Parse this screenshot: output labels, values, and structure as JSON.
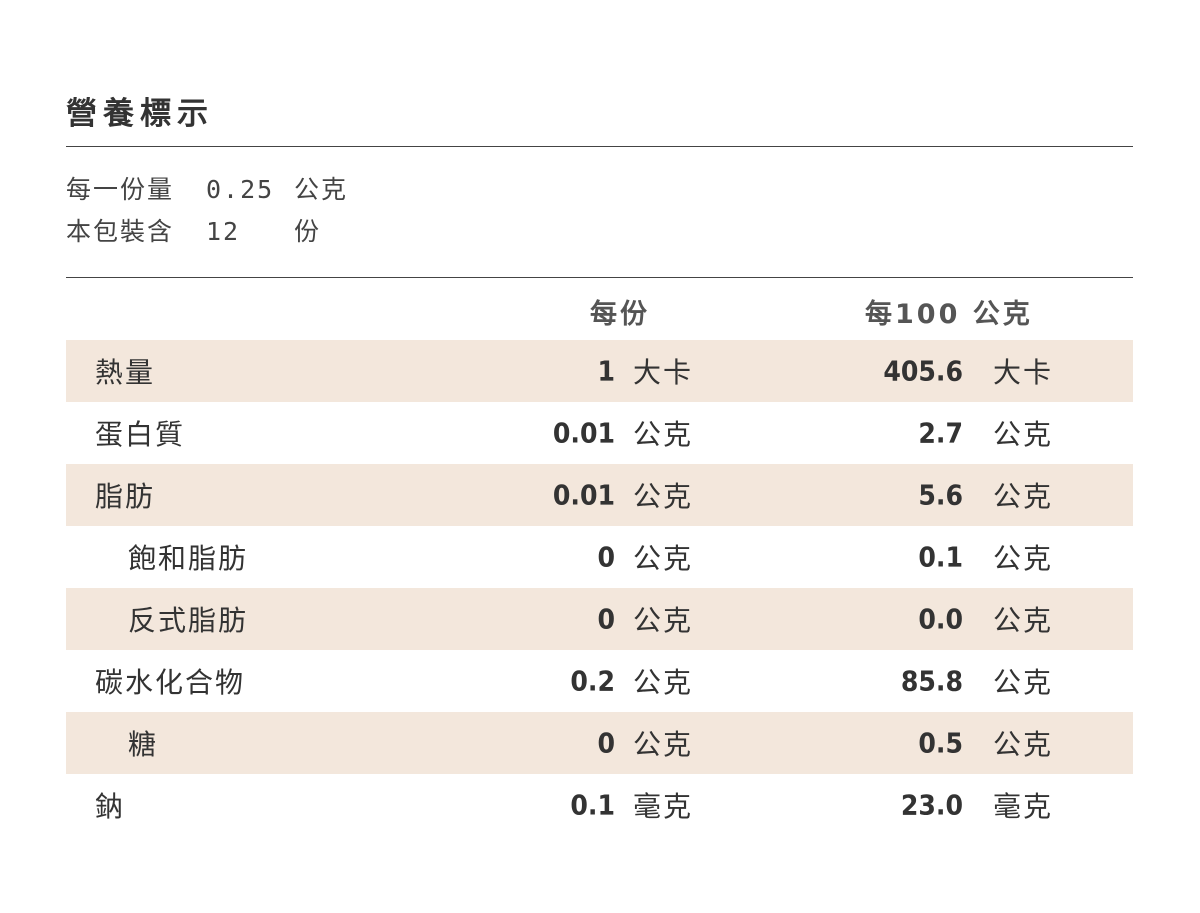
{
  "title": "營養標示",
  "serving": [
    {
      "label": "每一份量",
      "value": "0.25",
      "unit": "公克"
    },
    {
      "label": "本包裝含",
      "value": "12",
      "unit": "份"
    }
  ],
  "table": {
    "headers": [
      "每份",
      "每100 公克"
    ],
    "rows": [
      [
        "熱量",
        "1",
        "大卡",
        "405.6",
        "大卡"
      ],
      [
        "蛋白質",
        "0.01",
        "公克",
        "2.7",
        "公克"
      ],
      [
        "脂肪",
        "0.01",
        "公克",
        "5.6",
        "公克"
      ],
      [
        "飽和脂肪",
        "0",
        "公克",
        "0.1",
        "公克"
      ],
      [
        "反式脂肪",
        "0",
        "公克",
        "0.0",
        "公克"
      ],
      [
        "碳水化合物",
        "0.2",
        "公克",
        "85.8",
        "公克"
      ],
      [
        "糖",
        "0",
        "公克",
        "0.5",
        "公克"
      ],
      [
        "鈉",
        "0.1",
        "毫克",
        "23.0",
        "毫克"
      ]
    ]
  }
}
